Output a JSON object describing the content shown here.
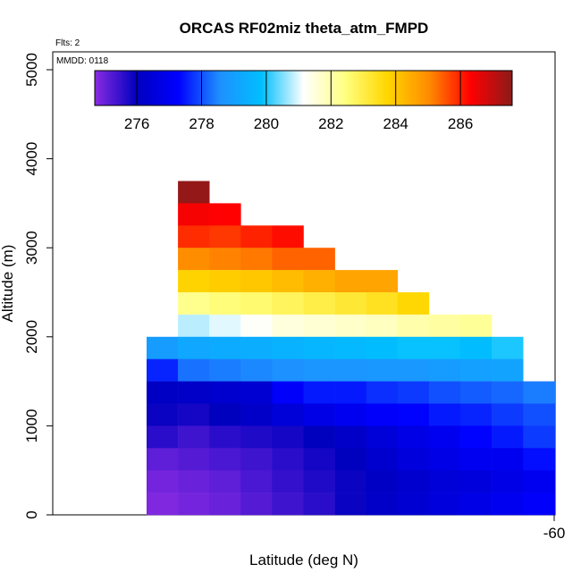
{
  "chart_data": {
    "type": "heatmap",
    "title": "ORCAS RF02miz theta_atm_FMPD",
    "xlabel": "Latitude (deg N)",
    "ylabel": "Altitude (m)",
    "annotations": {
      "flights": "Flts: 2",
      "date": "MMDD: 0118"
    },
    "x_ticks": [
      "-60"
    ],
    "y_ticks": [
      "0",
      "1000",
      "2000",
      "3000",
      "4000",
      "5000"
    ],
    "colorbar": {
      "min": 274.7,
      "max": 287.6,
      "ticks": [
        "276",
        "278",
        "280",
        "282",
        "284",
        "286"
      ],
      "stops": [
        "#8a2be2",
        "#0000bf",
        "#0000ff",
        "#1e90ff",
        "#00bfff",
        "#ffffff",
        "#ffff80",
        "#ffd700",
        "#ff8c00",
        "#ff0000",
        "#8b1a1a"
      ]
    },
    "ylim": [
      0,
      5200
    ],
    "bin_height_m": 250,
    "cells": [
      {
        "col": 1,
        "row": 14,
        "value": 287.5
      },
      {
        "col": 1,
        "row": 13,
        "value": 286.4
      },
      {
        "col": 2,
        "row": 13,
        "value": 286.3
      },
      {
        "col": 1,
        "row": 12,
        "value": 285.9
      },
      {
        "col": 2,
        "row": 12,
        "value": 285.8
      },
      {
        "col": 3,
        "row": 12,
        "value": 286.0
      },
      {
        "col": 4,
        "row": 12,
        "value": 286.2
      },
      {
        "col": 1,
        "row": 11,
        "value": 285.0
      },
      {
        "col": 2,
        "row": 11,
        "value": 285.1
      },
      {
        "col": 3,
        "row": 11,
        "value": 285.2
      },
      {
        "col": 4,
        "row": 11,
        "value": 285.4
      },
      {
        "col": 5,
        "row": 11,
        "value": 285.4
      },
      {
        "col": 1,
        "row": 10,
        "value": 283.8
      },
      {
        "col": 2,
        "row": 10,
        "value": 283.9
      },
      {
        "col": 3,
        "row": 10,
        "value": 284.0
      },
      {
        "col": 4,
        "row": 10,
        "value": 284.2
      },
      {
        "col": 5,
        "row": 10,
        "value": 284.4
      },
      {
        "col": 6,
        "row": 10,
        "value": 284.6
      },
      {
        "col": 7,
        "row": 10,
        "value": 284.6
      },
      {
        "col": 1,
        "row": 9,
        "value": 282.3
      },
      {
        "col": 2,
        "row": 9,
        "value": 282.5
      },
      {
        "col": 3,
        "row": 9,
        "value": 282.6
      },
      {
        "col": 4,
        "row": 9,
        "value": 282.8
      },
      {
        "col": 5,
        "row": 9,
        "value": 283.0
      },
      {
        "col": 6,
        "row": 9,
        "value": 283.2
      },
      {
        "col": 7,
        "row": 9,
        "value": 283.4
      },
      {
        "col": 8,
        "row": 9,
        "value": 283.7
      },
      {
        "col": 1,
        "row": 8,
        "value": 280.8
      },
      {
        "col": 2,
        "row": 8,
        "value": 281.0
      },
      {
        "col": 3,
        "row": 8,
        "value": 281.2
      },
      {
        "col": 4,
        "row": 8,
        "value": 281.5
      },
      {
        "col": 5,
        "row": 8,
        "value": 281.6
      },
      {
        "col": 6,
        "row": 8,
        "value": 281.7
      },
      {
        "col": 7,
        "row": 8,
        "value": 281.8
      },
      {
        "col": 8,
        "row": 8,
        "value": 282.0
      },
      {
        "col": 9,
        "row": 8,
        "value": 282.1
      },
      {
        "col": 10,
        "row": 8,
        "value": 282.2
      },
      {
        "col": 0,
        "row": 7,
        "value": 278.9
      },
      {
        "col": 1,
        "row": 7,
        "value": 279.2
      },
      {
        "col": 2,
        "row": 7,
        "value": 279.3
      },
      {
        "col": 3,
        "row": 7,
        "value": 279.4
      },
      {
        "col": 4,
        "row": 7,
        "value": 279.5
      },
      {
        "col": 5,
        "row": 7,
        "value": 279.6
      },
      {
        "col": 6,
        "row": 7,
        "value": 279.7
      },
      {
        "col": 7,
        "row": 7,
        "value": 279.8
      },
      {
        "col": 8,
        "row": 7,
        "value": 279.9
      },
      {
        "col": 9,
        "row": 7,
        "value": 279.9
      },
      {
        "col": 10,
        "row": 7,
        "value": 279.8
      },
      {
        "col": 11,
        "row": 7,
        "value": 280.0
      },
      {
        "col": 0,
        "row": 6,
        "value": 277.6
      },
      {
        "col": 1,
        "row": 6,
        "value": 278.3
      },
      {
        "col": 2,
        "row": 6,
        "value": 278.4
      },
      {
        "col": 3,
        "row": 6,
        "value": 278.5
      },
      {
        "col": 4,
        "row": 6,
        "value": 278.6
      },
      {
        "col": 5,
        "row": 6,
        "value": 278.7
      },
      {
        "col": 6,
        "row": 6,
        "value": 278.7
      },
      {
        "col": 7,
        "row": 6,
        "value": 278.8
      },
      {
        "col": 8,
        "row": 6,
        "value": 278.8
      },
      {
        "col": 9,
        "row": 6,
        "value": 278.9
      },
      {
        "col": 10,
        "row": 6,
        "value": 279.0
      },
      {
        "col": 11,
        "row": 6,
        "value": 279.1
      },
      {
        "col": 0,
        "row": 5,
        "value": 276.1
      },
      {
        "col": 1,
        "row": 5,
        "value": 276.2
      },
      {
        "col": 2,
        "row": 5,
        "value": 276.3
      },
      {
        "col": 3,
        "row": 5,
        "value": 276.4
      },
      {
        "col": 4,
        "row": 5,
        "value": 277.2
      },
      {
        "col": 5,
        "row": 5,
        "value": 277.5
      },
      {
        "col": 6,
        "row": 5,
        "value": 277.5
      },
      {
        "col": 7,
        "row": 5,
        "value": 277.7
      },
      {
        "col": 8,
        "row": 5,
        "value": 277.8
      },
      {
        "col": 9,
        "row": 5,
        "value": 278.0
      },
      {
        "col": 10,
        "row": 5,
        "value": 278.1
      },
      {
        "col": 11,
        "row": 5,
        "value": 278.2
      },
      {
        "col": 12,
        "row": 5,
        "value": 278.4
      },
      {
        "col": 0,
        "row": 4,
        "value": 275.9
      },
      {
        "col": 1,
        "row": 4,
        "value": 275.8
      },
      {
        "col": 2,
        "row": 4,
        "value": 276.0
      },
      {
        "col": 3,
        "row": 4,
        "value": 276.2
      },
      {
        "col": 4,
        "row": 4,
        "value": 276.5
      },
      {
        "col": 5,
        "row": 4,
        "value": 276.8
      },
      {
        "col": 6,
        "row": 4,
        "value": 277.0
      },
      {
        "col": 7,
        "row": 4,
        "value": 277.2
      },
      {
        "col": 8,
        "row": 4,
        "value": 277.3
      },
      {
        "col": 9,
        "row": 4,
        "value": 277.5
      },
      {
        "col": 10,
        "row": 4,
        "value": 277.6
      },
      {
        "col": 11,
        "row": 4,
        "value": 277.8
      },
      {
        "col": 12,
        "row": 4,
        "value": 278.0
      },
      {
        "col": 0,
        "row": 3,
        "value": 275.6
      },
      {
        "col": 1,
        "row": 3,
        "value": 275.4
      },
      {
        "col": 2,
        "row": 3,
        "value": 275.6
      },
      {
        "col": 3,
        "row": 3,
        "value": 275.7
      },
      {
        "col": 4,
        "row": 3,
        "value": 275.8
      },
      {
        "col": 5,
        "row": 3,
        "value": 276.0
      },
      {
        "col": 6,
        "row": 3,
        "value": 276.2
      },
      {
        "col": 7,
        "row": 3,
        "value": 276.5
      },
      {
        "col": 8,
        "row": 3,
        "value": 276.8
      },
      {
        "col": 9,
        "row": 3,
        "value": 277.0
      },
      {
        "col": 10,
        "row": 3,
        "value": 277.3
      },
      {
        "col": 11,
        "row": 3,
        "value": 277.5
      },
      {
        "col": 12,
        "row": 3,
        "value": 277.8
      },
      {
        "col": 0,
        "row": 2,
        "value": 275.1
      },
      {
        "col": 1,
        "row": 2,
        "value": 275.2
      },
      {
        "col": 2,
        "row": 2,
        "value": 275.3
      },
      {
        "col": 3,
        "row": 2,
        "value": 275.4
      },
      {
        "col": 4,
        "row": 2,
        "value": 275.6
      },
      {
        "col": 5,
        "row": 2,
        "value": 275.8
      },
      {
        "col": 6,
        "row": 2,
        "value": 276.0
      },
      {
        "col": 7,
        "row": 2,
        "value": 276.3
      },
      {
        "col": 8,
        "row": 2,
        "value": 276.6
      },
      {
        "col": 9,
        "row": 2,
        "value": 276.8
      },
      {
        "col": 10,
        "row": 2,
        "value": 277.0
      },
      {
        "col": 11,
        "row": 2,
        "value": 277.0
      },
      {
        "col": 12,
        "row": 2,
        "value": 277.4
      },
      {
        "col": 0,
        "row": 1,
        "value": 274.9
      },
      {
        "col": 1,
        "row": 1,
        "value": 275.0
      },
      {
        "col": 2,
        "row": 1,
        "value": 275.1
      },
      {
        "col": 3,
        "row": 1,
        "value": 275.3
      },
      {
        "col": 4,
        "row": 1,
        "value": 275.5
      },
      {
        "col": 5,
        "row": 1,
        "value": 275.7
      },
      {
        "col": 6,
        "row": 1,
        "value": 275.9
      },
      {
        "col": 7,
        "row": 1,
        "value": 276.1
      },
      {
        "col": 8,
        "row": 1,
        "value": 276.3
      },
      {
        "col": 9,
        "row": 1,
        "value": 276.5
      },
      {
        "col": 10,
        "row": 1,
        "value": 276.6
      },
      {
        "col": 11,
        "row": 1,
        "value": 276.8
      },
      {
        "col": 12,
        "row": 1,
        "value": 277.0
      },
      {
        "col": 0,
        "row": 0,
        "value": 274.8
      },
      {
        "col": 1,
        "row": 0,
        "value": 274.9
      },
      {
        "col": 2,
        "row": 0,
        "value": 275.0
      },
      {
        "col": 3,
        "row": 0,
        "value": 275.2
      },
      {
        "col": 4,
        "row": 0,
        "value": 275.4
      },
      {
        "col": 5,
        "row": 0,
        "value": 275.6
      },
      {
        "col": 6,
        "row": 0,
        "value": 275.9
      },
      {
        "col": 7,
        "row": 0,
        "value": 276.2
      },
      {
        "col": 8,
        "row": 0,
        "value": 276.4
      },
      {
        "col": 9,
        "row": 0,
        "value": 276.6
      },
      {
        "col": 10,
        "row": 0,
        "value": 276.8
      },
      {
        "col": 11,
        "row": 0,
        "value": 277.0
      },
      {
        "col": 12,
        "row": 0,
        "value": 277.2
      }
    ],
    "grid": false,
    "colorbar_placement": "top-inside"
  }
}
